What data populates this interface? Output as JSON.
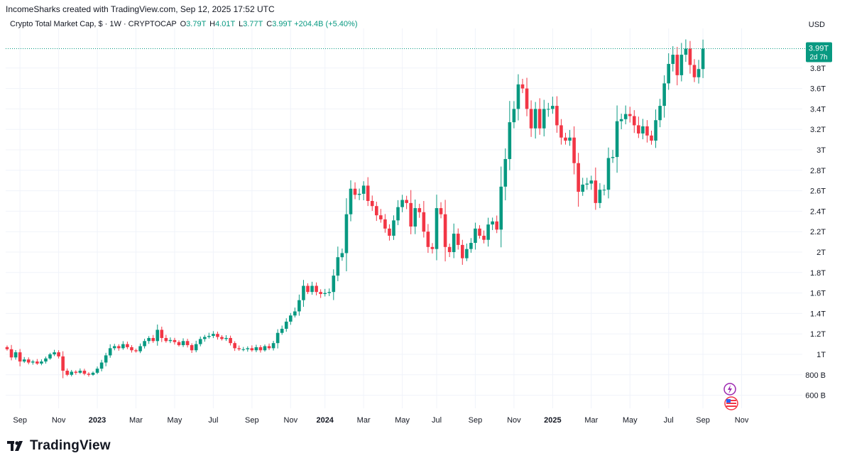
{
  "header": {
    "attribution": "IncomeSharks created with TradingView.com, Sep 12, 2025 17:52 UTC"
  },
  "legend": {
    "symbol": "Crypto Total Market Cap, $ · 1W · CRYPTOCAP",
    "open_label": "O",
    "open": "3.79T",
    "high_label": "H",
    "high": "4.01T",
    "low_label": "L",
    "low": "3.77T",
    "close_label": "C",
    "close": "3.99T",
    "change": "+204.4B (+5.40%)"
  },
  "price_axis": {
    "currency": "USD",
    "last_price": "3.99T",
    "countdown": "2d 7h"
  },
  "brand": {
    "name": "TradingView"
  },
  "colors": {
    "up": "#089981",
    "down": "#f23645",
    "grid": "#f0f3fa",
    "text": "#131722"
  },
  "chart_data": {
    "type": "candlestick",
    "title": "Crypto Total Market Cap, $ · 1W · CRYPTOCAP",
    "xlabel": "",
    "ylabel": "USD",
    "ylim": [
      470000000000,
      4300000000000
    ],
    "y_ticks": [
      {
        "value": 600000000000,
        "label": "600 B"
      },
      {
        "value": 800000000000,
        "label": "800 B"
      },
      {
        "value": 1000000000000,
        "label": "1T"
      },
      {
        "value": 1200000000000,
        "label": "1.2T"
      },
      {
        "value": 1400000000000,
        "label": "1.4T"
      },
      {
        "value": 1600000000000,
        "label": "1.6T"
      },
      {
        "value": 1800000000000,
        "label": "1.8T"
      },
      {
        "value": 2000000000000,
        "label": "2T"
      },
      {
        "value": 2200000000000,
        "label": "2.2T"
      },
      {
        "value": 2400000000000,
        "label": "2.4T"
      },
      {
        "value": 2600000000000,
        "label": "2.6T"
      },
      {
        "value": 2800000000000,
        "label": "2.8T"
      },
      {
        "value": 3000000000000,
        "label": "3T"
      },
      {
        "value": 3200000000000,
        "label": "3.2T"
      },
      {
        "value": 3400000000000,
        "label": "3.4T"
      },
      {
        "value": 3600000000000,
        "label": "3.6T"
      },
      {
        "value": 3800000000000,
        "label": "3.8T"
      }
    ],
    "x_ticks": [
      {
        "week": 3,
        "label": "Sep",
        "bold": false
      },
      {
        "week": 12,
        "label": "Nov",
        "bold": false
      },
      {
        "week": 21,
        "label": "2023",
        "bold": true
      },
      {
        "week": 30,
        "label": "Mar",
        "bold": false
      },
      {
        "week": 39,
        "label": "May",
        "bold": false
      },
      {
        "week": 48,
        "label": "Jul",
        "bold": false
      },
      {
        "week": 57,
        "label": "Sep",
        "bold": false
      },
      {
        "week": 66,
        "label": "Nov",
        "bold": false
      },
      {
        "week": 74,
        "label": "2024",
        "bold": true
      },
      {
        "week": 83,
        "label": "Mar",
        "bold": false
      },
      {
        "week": 92,
        "label": "May",
        "bold": false
      },
      {
        "week": 100,
        "label": "Jul",
        "bold": false
      },
      {
        "week": 109,
        "label": "Sep",
        "bold": false
      },
      {
        "week": 118,
        "label": "Nov",
        "bold": false
      },
      {
        "week": 127,
        "label": "2025",
        "bold": true
      },
      {
        "week": 136,
        "label": "Mar",
        "bold": false
      },
      {
        "week": 145,
        "label": "May",
        "bold": false
      },
      {
        "week": 154,
        "label": "Jul",
        "bold": false
      },
      {
        "week": 162,
        "label": "Sep",
        "bold": false
      },
      {
        "week": 171,
        "label": "Nov",
        "bold": false
      }
    ],
    "close_values_trillions": [
      1.05,
      0.97,
      1.02,
      0.93,
      0.95,
      0.92,
      0.93,
      0.91,
      0.93,
      0.96,
      1.0,
      1.02,
      0.98,
      0.84,
      0.8,
      0.83,
      0.82,
      0.84,
      0.81,
      0.8,
      0.82,
      0.86,
      0.92,
      0.99,
      1.06,
      1.08,
      1.06,
      1.1,
      1.07,
      1.04,
      1.03,
      1.08,
      1.13,
      1.16,
      1.13,
      1.24,
      1.16,
      1.13,
      1.14,
      1.12,
      1.09,
      1.13,
      1.09,
      1.04,
      1.1,
      1.15,
      1.17,
      1.18,
      1.2,
      1.17,
      1.15,
      1.16,
      1.11,
      1.06,
      1.05,
      1.05,
      1.06,
      1.04,
      1.07,
      1.04,
      1.08,
      1.06,
      1.11,
      1.21,
      1.25,
      1.32,
      1.38,
      1.42,
      1.53,
      1.67,
      1.61,
      1.67,
      1.61,
      1.59,
      1.6,
      1.61,
      1.77,
      1.95,
      1.99,
      2.37,
      2.62,
      2.56,
      2.57,
      2.65,
      2.5,
      2.45,
      2.36,
      2.32,
      2.23,
      2.16,
      2.31,
      2.44,
      2.51,
      2.48,
      2.25,
      2.43,
      2.39,
      2.2,
      2.05,
      2.03,
      2.43,
      2.37,
      2.05,
      2.0,
      2.18,
      2.07,
      1.94,
      2.03,
      2.09,
      2.23,
      2.16,
      2.12,
      2.27,
      2.3,
      2.22,
      2.64,
      2.91,
      3.27,
      3.4,
      3.64,
      3.6,
      3.4,
      3.21,
      3.4,
      3.21,
      3.4,
      3.4,
      3.43,
      3.24,
      3.12,
      3.09,
      3.12,
      2.87,
      2.59,
      2.66,
      2.67,
      2.7,
      2.48,
      2.61,
      2.61,
      2.92,
      2.93,
      3.28,
      3.3,
      3.35,
      3.33,
      3.24,
      3.16,
      3.23,
      3.14,
      3.09,
      3.29,
      3.43,
      3.65,
      3.84,
      3.93,
      3.73,
      3.93,
      3.99,
      3.83,
      3.71,
      3.79,
      3.99
    ],
    "notes": "Weekly candles, one per value; each candle opens at the previous close.",
    "last_value": 3990000000000
  }
}
